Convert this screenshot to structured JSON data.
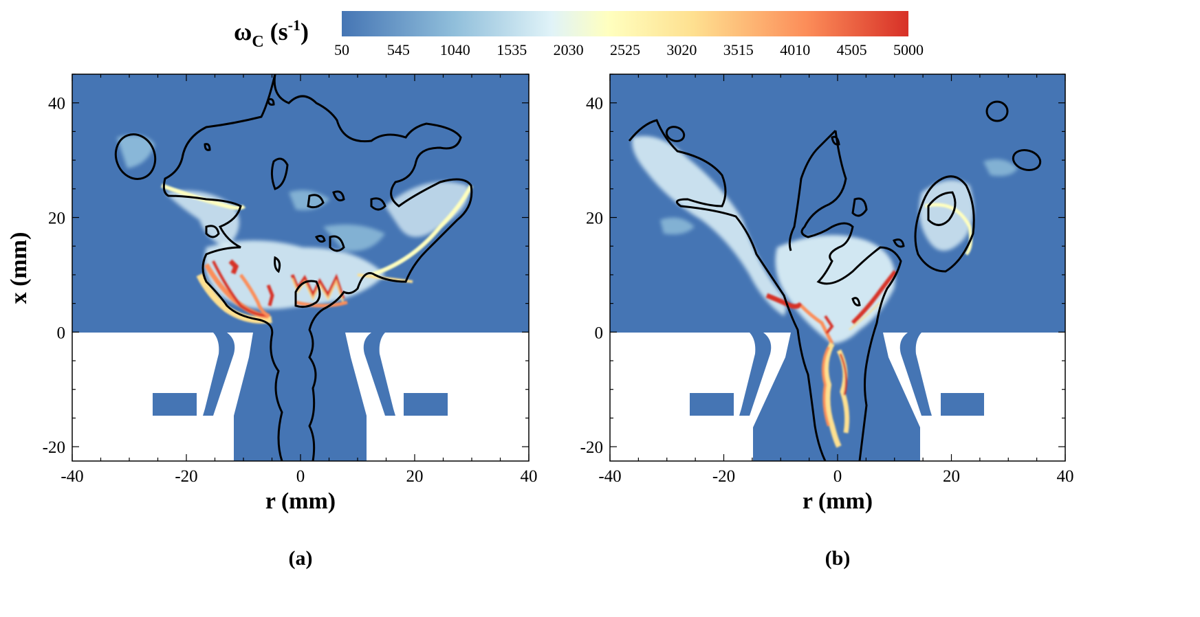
{
  "colorbar": {
    "symbol": "ω",
    "subscript": "C",
    "unit_open": " (s",
    "unit_exp": "-1",
    "unit_close": ")",
    "ticks": [
      "50",
      "545",
      "1040",
      "1535",
      "2030",
      "2525",
      "3020",
      "3515",
      "4010",
      "4505",
      "5000"
    ],
    "range": [
      50,
      5000
    ],
    "colors": [
      "#4575b4",
      "#91bfdb",
      "#e0f3f8",
      "#ffffbf",
      "#fee090",
      "#fc8d59",
      "#d73027"
    ]
  },
  "chart_data": [
    {
      "type": "heatmap",
      "panel_label": "(a)",
      "xlabel": "r (mm)",
      "ylabel": "x (mm)",
      "xlim": [
        -40,
        40
      ],
      "ylim": [
        -22.5,
        45
      ],
      "xticks": [
        "-40",
        "-20",
        "0",
        "20",
        "40"
      ],
      "yticks": [
        "-20",
        "0",
        "20",
        "40"
      ],
      "background_color": "#4575b4",
      "high_rate_region": "annular flame base near x = 2–12 mm, r = -17 to 10 mm"
    },
    {
      "type": "heatmap",
      "panel_label": "(b)",
      "xlabel": "r (mm)",
      "ylabel": "",
      "xlim": [
        -40,
        40
      ],
      "ylim": [
        -22.5,
        45
      ],
      "xticks": [
        "-40",
        "-20",
        "0",
        "20",
        "40"
      ],
      "yticks": [
        "-20",
        "0",
        "20",
        "40"
      ],
      "background_color": "#4575b4",
      "high_rate_region": "V-shaped flame from x = -20 to 12 mm, r = -12 to 11 mm"
    }
  ]
}
